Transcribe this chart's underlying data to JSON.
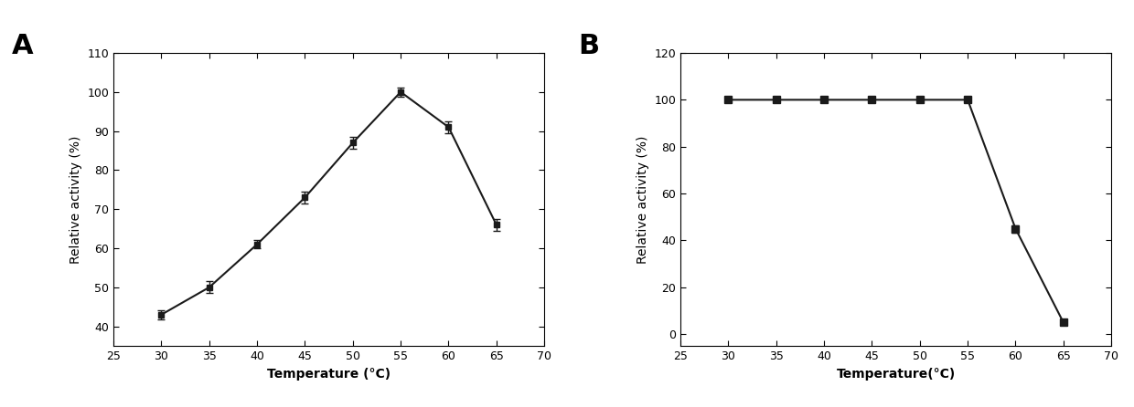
{
  "panel_A": {
    "x": [
      30,
      35,
      40,
      45,
      50,
      55,
      60,
      65
    ],
    "y": [
      43,
      50,
      61,
      73,
      87,
      100,
      91,
      66
    ],
    "yerr": [
      1.2,
      1.5,
      1.0,
      1.5,
      1.5,
      1.2,
      1.5,
      1.5
    ],
    "xlabel": "Temperature (°C)",
    "ylabel": "Relative activity (%)",
    "xlim": [
      25,
      70
    ],
    "ylim": [
      35,
      110
    ],
    "yticks": [
      40,
      50,
      60,
      70,
      80,
      90,
      100,
      110
    ],
    "xticks": [
      25,
      30,
      35,
      40,
      45,
      50,
      55,
      60,
      65,
      70
    ],
    "label": "A"
  },
  "panel_B": {
    "x": [
      30,
      35,
      40,
      45,
      50,
      55,
      60,
      65
    ],
    "y": [
      100,
      100,
      100,
      100,
      100,
      100,
      45,
      5
    ],
    "yerr": [
      0.8,
      0.8,
      0.8,
      0.8,
      0.8,
      0.8,
      1.5,
      1.2
    ],
    "xlabel": "Temperature(°C)",
    "ylabel": "Relative activity (%)",
    "xlim": [
      25,
      70
    ],
    "ylim": [
      -5,
      120
    ],
    "yticks": [
      0,
      20,
      40,
      60,
      80,
      100,
      120
    ],
    "xticks": [
      25,
      30,
      35,
      40,
      45,
      50,
      55,
      60,
      65,
      70
    ],
    "label": "B"
  },
  "line_color": "#1a1a1a",
  "marker_style_A": "s",
  "marker_style_B": "s",
  "marker_size_A": 4,
  "marker_size_B": 6,
  "line_width": 1.5,
  "font_size_label": 10,
  "font_size_tick": 9,
  "font_size_panel": 22,
  "background_color": "#ffffff"
}
